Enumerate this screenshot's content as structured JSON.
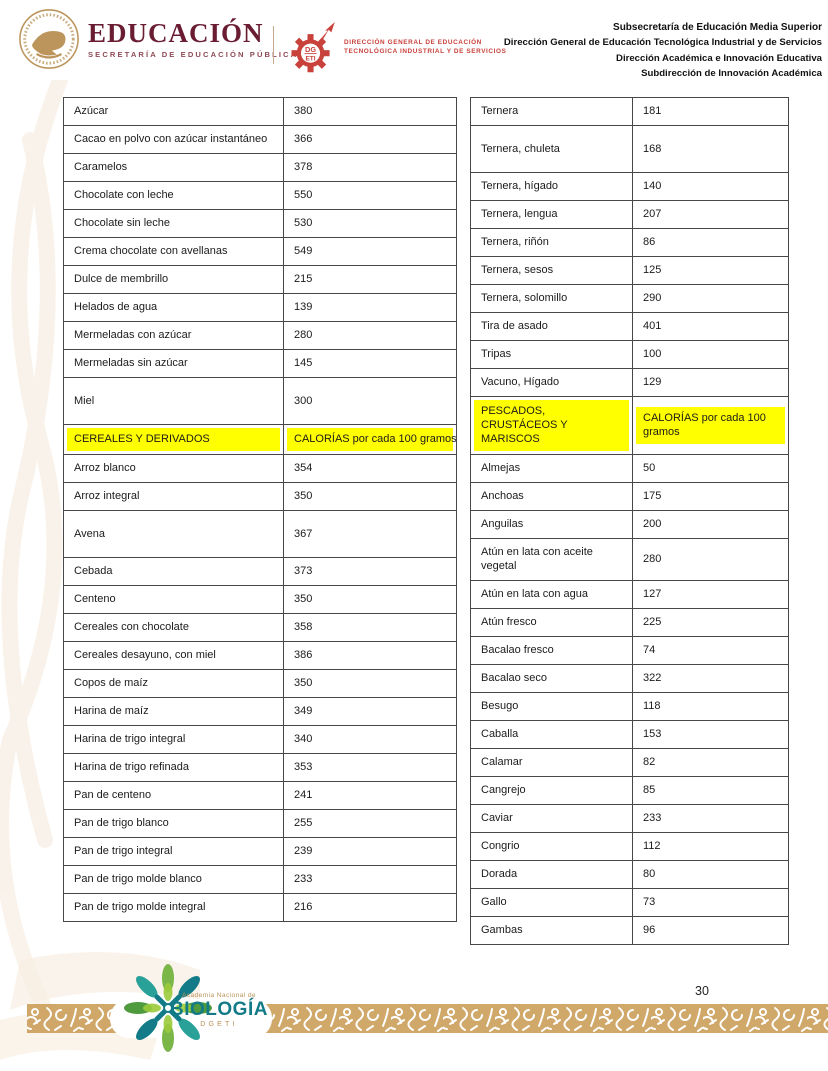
{
  "header": {
    "education_logo": {
      "title": "EDUCACIÓN",
      "subtitle": "SECRETARÍA DE EDUCACIÓN PÚBLICA"
    },
    "dgeti_logo": {
      "monogram_top": "DG",
      "monogram_bottom": "ETI",
      "line1": "DIRECCIÓN GENERAL DE EDUCACIÓN",
      "line2": "TECNOLÓGICA INDUSTRIAL Y DE SERVICIOS"
    },
    "right_lines": [
      "Subsecretaría de Educación Media Superior",
      "Dirección General de Educación Tecnológica Industrial y de Servicios",
      "Dirección Académica e Innovación Educativa",
      "Subdirección de Innovación Académica"
    ]
  },
  "tables": {
    "left": {
      "rows": [
        {
          "name": "Azúcar",
          "value": "380"
        },
        {
          "name": "Cacao en polvo con azúcar instantáneo",
          "value": "366"
        },
        {
          "name": "Caramelos",
          "value": "378"
        },
        {
          "name": "Chocolate con leche",
          "value": "550"
        },
        {
          "name": "Chocolate sin leche",
          "value": "530"
        },
        {
          "name": "Crema chocolate con avellanas",
          "value": "549"
        },
        {
          "name": "Dulce de membrillo",
          "value": "215"
        },
        {
          "name": "Helados de agua",
          "value": "139"
        },
        {
          "name": "Mermeladas con azúcar",
          "value": "280"
        },
        {
          "name": "Mermeladas sin azúcar",
          "value": "145"
        },
        {
          "name": "Miel",
          "value": "300",
          "tall": true
        },
        {
          "name": "CEREALES Y DERIVADOS",
          "value": "CALORÍAS por cada 100 gramos",
          "section": true
        },
        {
          "name": "Arroz blanco",
          "value": "354"
        },
        {
          "name": "Arroz integral",
          "value": "350"
        },
        {
          "name": "Avena",
          "value": "367",
          "tall": true
        },
        {
          "name": "Cebada",
          "value": "373"
        },
        {
          "name": "Centeno",
          "value": "350"
        },
        {
          "name": "Cereales con chocolate",
          "value": "358"
        },
        {
          "name": "Cereales desayuno, con miel",
          "value": "386"
        },
        {
          "name": "Copos de maíz",
          "value": "350"
        },
        {
          "name": "Harina de maíz",
          "value": "349"
        },
        {
          "name": "Harina de trigo integral",
          "value": "340"
        },
        {
          "name": "Harina de trigo refinada",
          "value": "353"
        },
        {
          "name": "Pan de centeno",
          "value": "241"
        },
        {
          "name": "Pan de trigo blanco",
          "value": "255"
        },
        {
          "name": "Pan de trigo integral",
          "value": "239"
        },
        {
          "name": "Pan de trigo molde blanco",
          "value": "233"
        },
        {
          "name": "Pan de trigo molde integral",
          "value": "216"
        }
      ]
    },
    "right": {
      "rows": [
        {
          "name": "Ternera",
          "value": "181"
        },
        {
          "name": "Ternera, chuleta",
          "value": "168",
          "tall": true
        },
        {
          "name": "Ternera, hígado",
          "value": "140"
        },
        {
          "name": "Ternera, lengua",
          "value": "207"
        },
        {
          "name": "Ternera, riñón",
          "value": "86"
        },
        {
          "name": "Ternera, sesos",
          "value": "125"
        },
        {
          "name": "Ternera, solomillo",
          "value": "290"
        },
        {
          "name": "Tira de asado",
          "value": "401"
        },
        {
          "name": "Tripas",
          "value": "100"
        },
        {
          "name": "Vacuno, Hígado",
          "value": "129"
        },
        {
          "name": "PESCADOS, CRUSTÁCEOS Y MARISCOS",
          "value": "CALORÍAS por cada 100 gramos",
          "section": true
        },
        {
          "name": "Almejas",
          "value": "50"
        },
        {
          "name": "Anchoas",
          "value": "175"
        },
        {
          "name": "Anguilas",
          "value": "200"
        },
        {
          "name": "Atún en lata con aceite vegetal",
          "value": "280"
        },
        {
          "name": "Atún en lata con agua",
          "value": "127"
        },
        {
          "name": "Atún fresco",
          "value": "225"
        },
        {
          "name": "Bacalao fresco",
          "value": "74"
        },
        {
          "name": "Bacalao seco",
          "value": "322"
        },
        {
          "name": "Besugo",
          "value": "118"
        },
        {
          "name": "Caballa",
          "value": "153"
        },
        {
          "name": "Calamar",
          "value": "82"
        },
        {
          "name": "Cangrejo",
          "value": "85"
        },
        {
          "name": "Caviar",
          "value": "233"
        },
        {
          "name": "Congrio",
          "value": "112"
        },
        {
          "name": "Dorada",
          "value": "80"
        },
        {
          "name": "Gallo",
          "value": "73"
        },
        {
          "name": "Gambas",
          "value": "96"
        }
      ]
    }
  },
  "footer": {
    "page_number": "30",
    "biologia_logo": {
      "top": "Academia Nacional de",
      "title": "BIOLOGÍA",
      "subtitle": "DGETI"
    }
  },
  "colors": {
    "section_highlight": "#FFFF00",
    "sep_maroon": "#691C32",
    "seal_gold": "#BC955C",
    "dgeti_red": "#C8413B",
    "band_tan": "#CDA15E",
    "biologia_teal": "#127B87",
    "biologia_green": "#7AB648"
  }
}
